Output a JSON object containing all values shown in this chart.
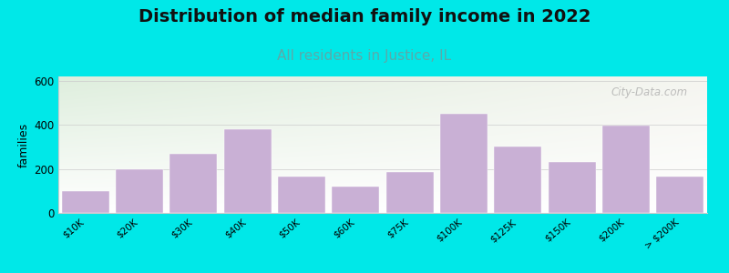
{
  "categories": [
    "$10K",
    "$20K",
    "$30K",
    "$40K",
    "$50K",
    "$60K",
    "$75K",
    "$100K",
    "$125K",
    "$150K",
    "$200K",
    "> $200K"
  ],
  "values": [
    100,
    200,
    270,
    380,
    165,
    120,
    185,
    450,
    300,
    230,
    395,
    165
  ],
  "bar_color": "#c9b0d5",
  "background_color": "#00e8e8",
  "plot_bg_color_topleft": "#deeedd",
  "plot_bg_color_right": "#f5f5f0",
  "plot_bg_color_bottom": "#ffffff",
  "title": "Distribution of median family income in 2022",
  "subtitle": "All residents in Justice, IL",
  "ylabel": "families",
  "title_fontsize": 14,
  "subtitle_fontsize": 11,
  "subtitle_color": "#5aaaaa",
  "ylabel_fontsize": 9,
  "tick_fontsize": 7.5,
  "ylim": [
    0,
    620
  ],
  "yticks": [
    0,
    200,
    400,
    600
  ],
  "watermark": "City-Data.com"
}
